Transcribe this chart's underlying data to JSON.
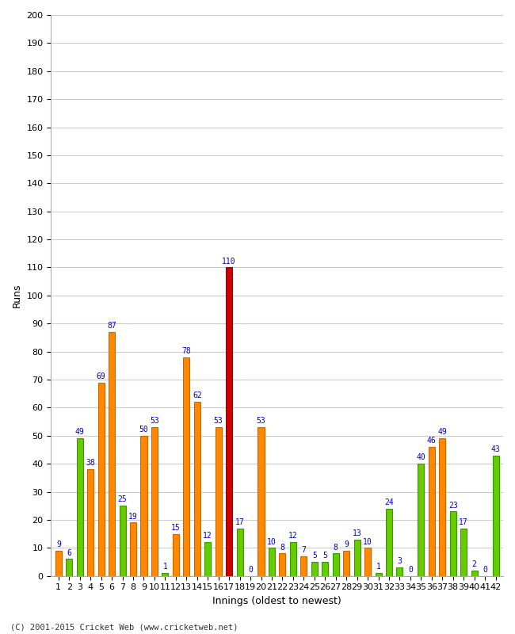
{
  "xlabel": "Innings (oldest to newest)",
  "ylabel": "Runs",
  "footer": "(C) 2001-2015 Cricket Web (www.cricketweb.net)",
  "ylim": [
    0,
    200
  ],
  "yticks": [
    0,
    10,
    20,
    30,
    40,
    50,
    60,
    70,
    80,
    90,
    100,
    110,
    120,
    130,
    140,
    150,
    160,
    170,
    180,
    190,
    200
  ],
  "innings": [
    1,
    2,
    3,
    4,
    5,
    6,
    7,
    8,
    9,
    10,
    11,
    12,
    13,
    14,
    15,
    16,
    17,
    18,
    19,
    20,
    21,
    22,
    23,
    24,
    25,
    26,
    27,
    28,
    29,
    30,
    31,
    32,
    33,
    34,
    35,
    36,
    37,
    38,
    39,
    40,
    41,
    42
  ],
  "values": [
    9,
    6,
    49,
    38,
    69,
    87,
    25,
    19,
    50,
    53,
    1,
    15,
    78,
    62,
    12,
    53,
    110,
    17,
    0,
    53,
    10,
    8,
    12,
    7,
    5,
    5,
    8,
    9,
    13,
    10,
    1,
    24,
    3,
    0,
    40,
    46,
    49,
    23,
    17,
    2,
    0,
    43
  ],
  "colors": [
    "#ff8800",
    "#66cc00",
    "#66cc00",
    "#ff8800",
    "#ff8800",
    "#ff8800",
    "#66cc00",
    "#ff8800",
    "#ff8800",
    "#ff8800",
    "#66cc00",
    "#ff8800",
    "#ff8800",
    "#ff8800",
    "#66cc00",
    "#ff8800",
    "#cc0000",
    "#66cc00",
    "#66cc00",
    "#ff8800",
    "#66cc00",
    "#ff8800",
    "#66cc00",
    "#ff8800",
    "#66cc00",
    "#66cc00",
    "#66cc00",
    "#ff8800",
    "#66cc00",
    "#ff8800",
    "#66cc00",
    "#66cc00",
    "#66cc00",
    "#66cc00",
    "#66cc00",
    "#ff8800",
    "#ff8800",
    "#66cc00",
    "#66cc00",
    "#66cc00",
    "#66cc00",
    "#66cc00"
  ],
  "edge_colors": [
    "#cc6600",
    "#339900",
    "#339900",
    "#cc6600",
    "#cc6600",
    "#cc6600",
    "#339900",
    "#cc6600",
    "#cc6600",
    "#cc6600",
    "#339900",
    "#cc6600",
    "#cc6600",
    "#cc6600",
    "#339900",
    "#cc6600",
    "#990000",
    "#339900",
    "#339900",
    "#cc6600",
    "#339900",
    "#cc6600",
    "#339900",
    "#cc6600",
    "#339900",
    "#339900",
    "#339900",
    "#cc6600",
    "#339900",
    "#cc6600",
    "#339900",
    "#339900",
    "#339900",
    "#339900",
    "#339900",
    "#cc6600",
    "#cc6600",
    "#339900",
    "#339900",
    "#339900",
    "#339900",
    "#339900"
  ],
  "label_color": "#0000cc",
  "bar_width": 0.6,
  "bg_color": "#ffffff",
  "grid_color": "#cccccc",
  "axis_fontsize": 9,
  "tick_fontsize": 8,
  "label_fontsize": 7
}
